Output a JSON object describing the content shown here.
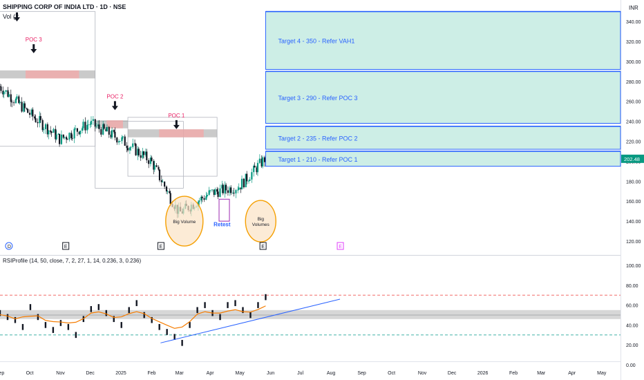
{
  "header": {
    "title": "SHIPPING CORP OF INDIA LTD · 1D · NSE",
    "volume_label": "Vol (2",
    "currency": "INR"
  },
  "indicator": {
    "label": "RSIProfile (14, 50, close, 7, 2, 27, 1, 14, 0.236, 3, 0.236)"
  },
  "colors": {
    "up": "#089981",
    "down": "#131722",
    "target_fill": "#cdeee6",
    "target_line": "#2962ff",
    "poc_text": "#e91e63",
    "annotation_text": "#2962ff",
    "circle_fill": "#fbe3c4",
    "circle_stroke": "#f59f00",
    "price_badge": "#089981",
    "rsi_orange": "#f57c00",
    "rsi_upper_dash": "#ef5350",
    "rsi_lower_dash": "#26a69a"
  },
  "chart_data": [
    {
      "type": "candlestick",
      "price_axis": {
        "ticks": [
          120,
          140,
          160,
          180,
          200,
          220,
          240,
          260,
          280,
          300,
          320,
          340
        ],
        "ylim": [
          111,
          356
        ]
      },
      "x_axis": {
        "tick_labels": [
          "Sep",
          "Oct",
          "Nov",
          "Dec",
          "2025",
          "Feb",
          "Mar",
          "Apr",
          "May",
          "Jun",
          "Jul",
          "Aug",
          "Sep",
          "Oct",
          "Nov",
          "Dec",
          "2026",
          "Feb",
          "Mar",
          "Apr",
          "May"
        ],
        "start": "2024-09-01",
        "end": "2026-05-20"
      },
      "last_price": "202.48",
      "series": [
        {
          "name": "price",
          "dates": [
            "2024-09-01",
            "2024-10-01",
            "2024-11-01",
            "2024-12-01",
            "2025-01-01",
            "2025-02-01",
            "2025-03-01",
            "2025-04-01",
            "2025-05-01",
            "2025-05-27"
          ],
          "values": [
            275,
            248,
            222,
            238,
            222,
            200,
            148,
            168,
            175,
            203
          ]
        }
      ],
      "targets": [
        {
          "label": "Target 1 - 210 - Refer POC 1",
          "value": 210,
          "from": 195
        },
        {
          "label": "Target 2 - 235 - Refer POC 2",
          "value": 235,
          "from": 212
        },
        {
          "label": "Target 3 - 290 - Refer POC 3",
          "value": 290,
          "from": 238
        },
        {
          "label": "Target 4 - 350 - Refer VAH1",
          "value": 350,
          "from": 292
        }
      ],
      "poc_labels": [
        "POC 3",
        "POC 2",
        "POC 1"
      ],
      "annotations": [
        "Big Volume",
        "Retest",
        "Big\nVolumes"
      ],
      "event_markers": [
        "D",
        "E",
        "E",
        "E",
        "E"
      ]
    },
    {
      "type": "line",
      "name": "RSIProfile",
      "y_axis": {
        "ticks": [
          "0.00",
          "20.00",
          "40.00",
          "60.00",
          "80.00",
          "100.00"
        ],
        "ylim": [
          0,
          100
        ]
      },
      "levels": {
        "upper_dash": 70,
        "band_upper": 55,
        "band_lower": 46,
        "mid": 50,
        "lower_dash": 30
      },
      "rsi_values": [
        52,
        48,
        45,
        38,
        58,
        48,
        40,
        35,
        42,
        38,
        30,
        46,
        56,
        58,
        52,
        46,
        40,
        55,
        62,
        50,
        45,
        38,
        33,
        28,
        22,
        40,
        55,
        60,
        52,
        48,
        60,
        62,
        55,
        50,
        60,
        68
      ]
    }
  ]
}
